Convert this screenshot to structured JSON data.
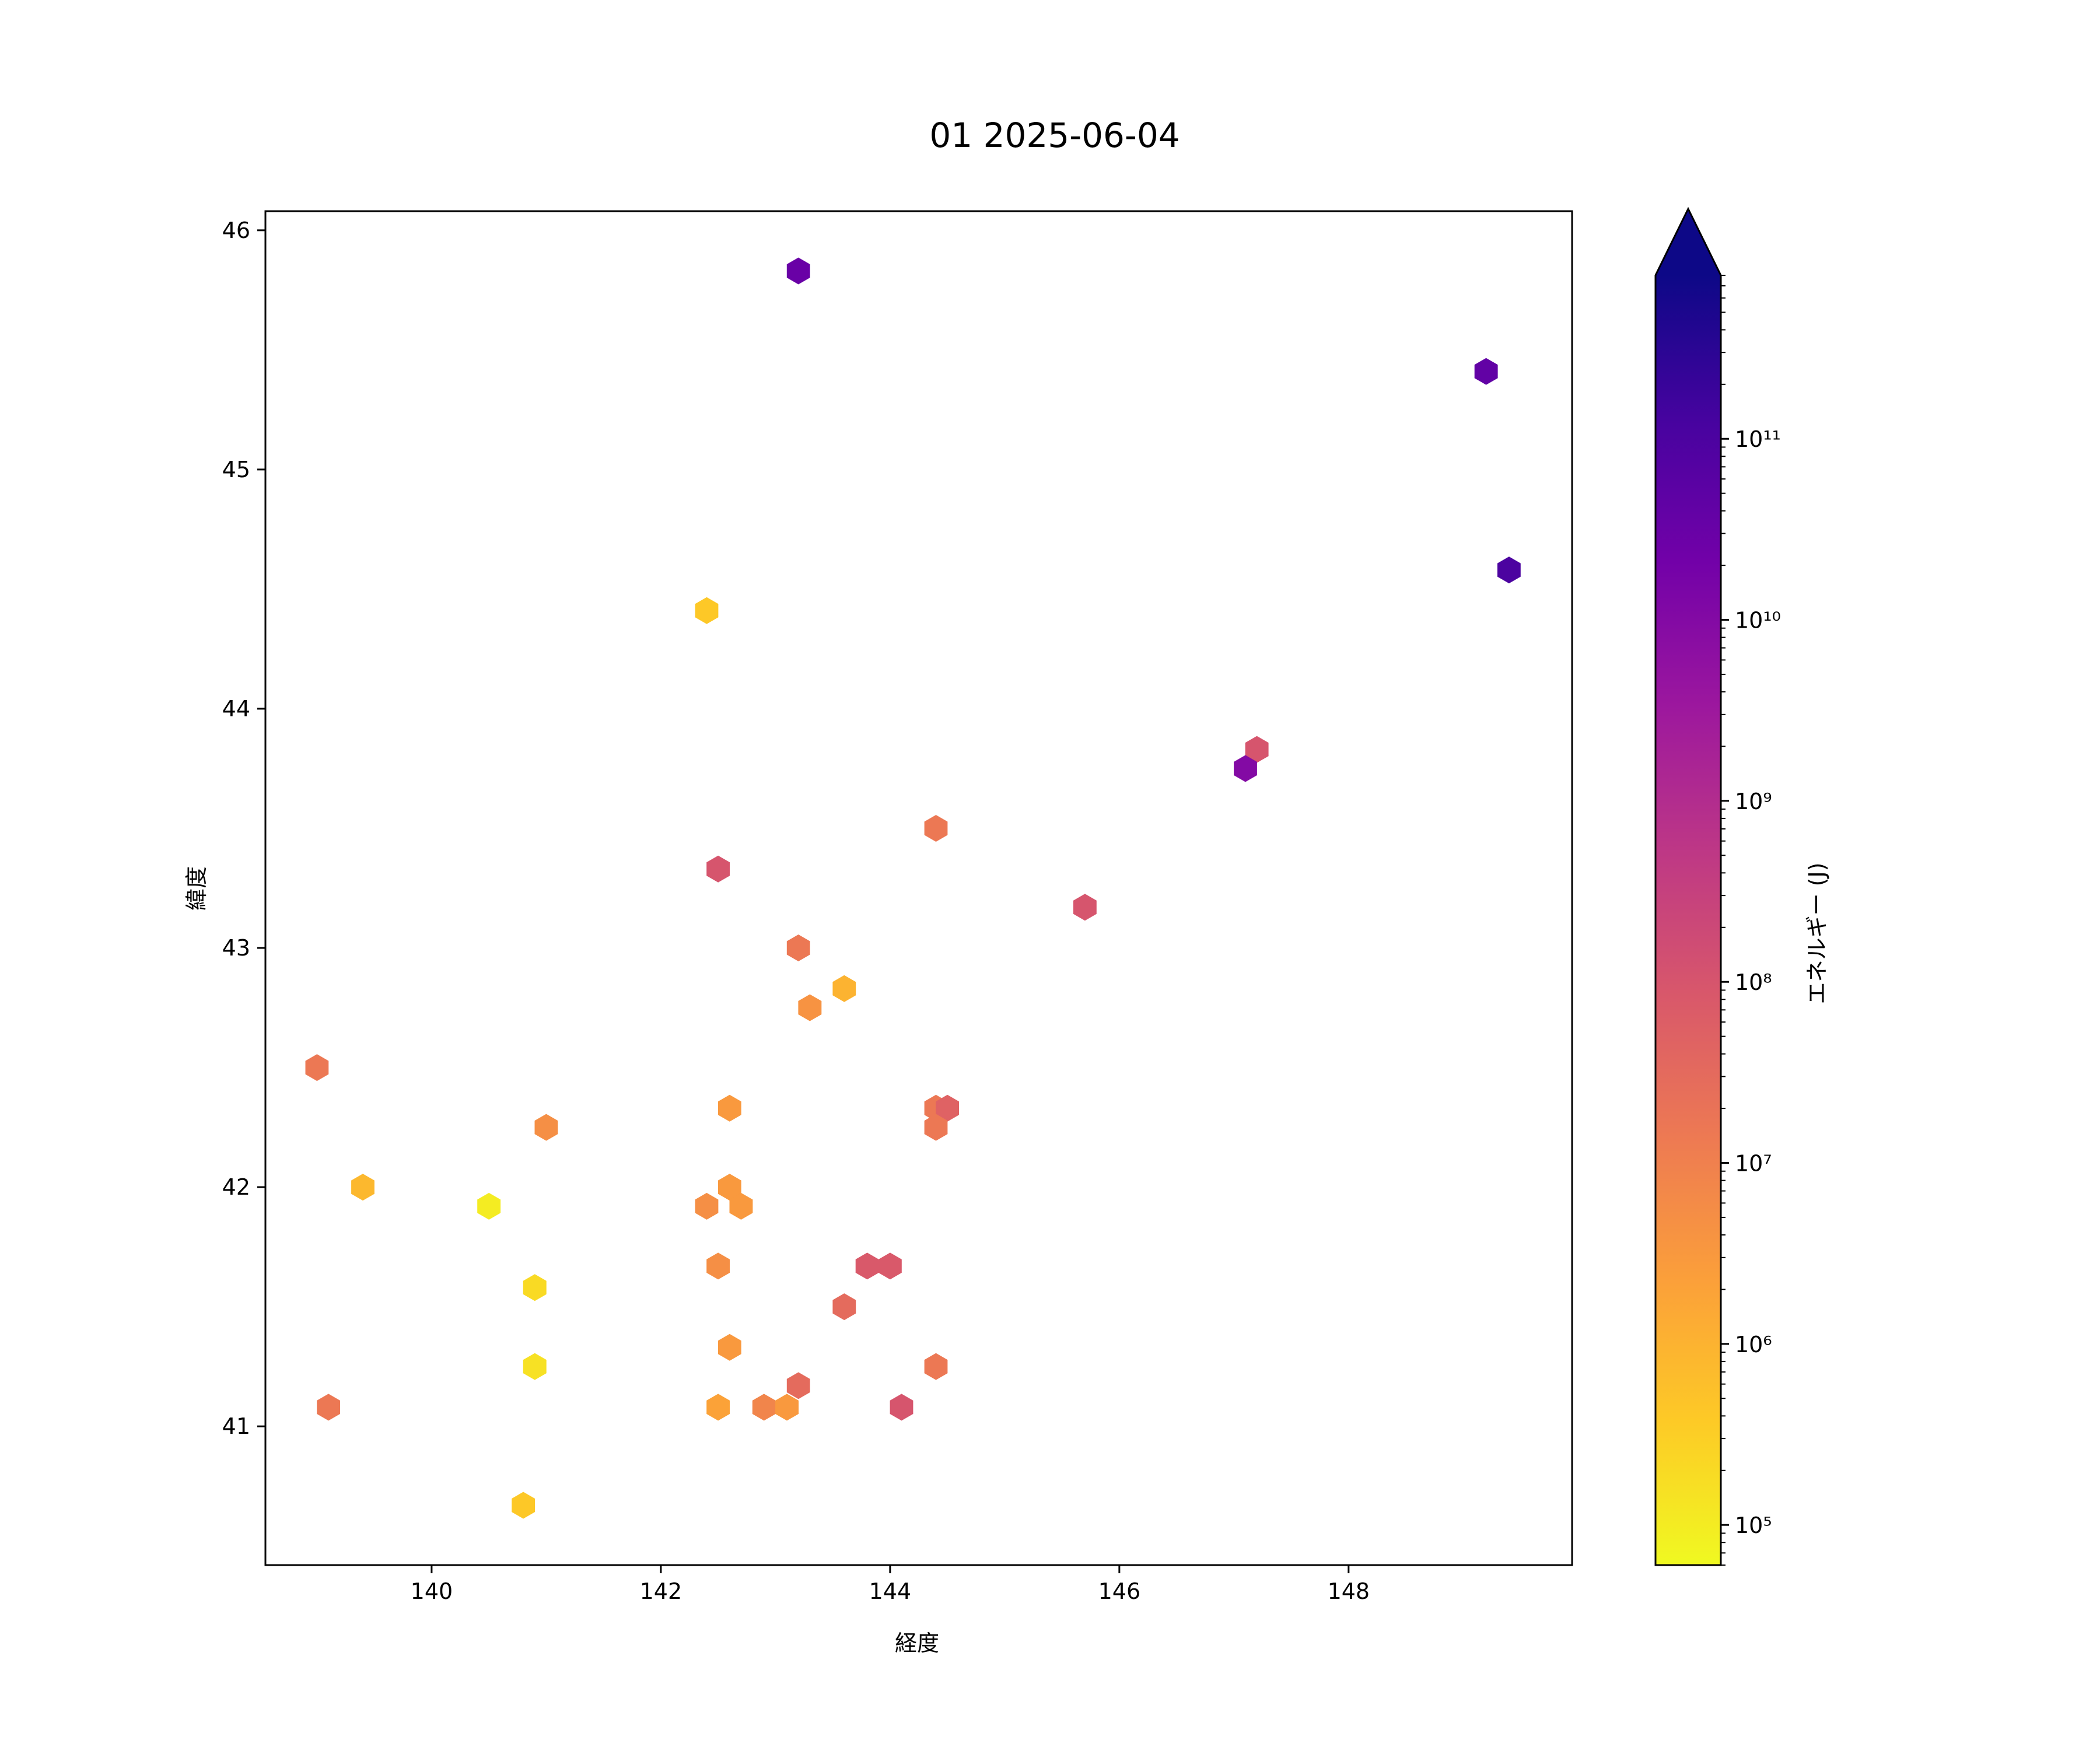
{
  "chart_data": {
    "type": "scatter",
    "marker": "hexagon",
    "title": "01 2025-06-04",
    "xlabel": "経度",
    "ylabel": "緯度",
    "xlim": [
      138.55,
      149.95
    ],
    "ylim": [
      40.42,
      46.08
    ],
    "xticks": [
      140,
      142,
      144,
      146,
      148
    ],
    "yticks": [
      41,
      42,
      43,
      44,
      45,
      46
    ],
    "grid": false,
    "colorbar": {
      "label": "エネルギー (J)",
      "scale": "log",
      "range": [
        60000,
        800000000000
      ],
      "extend": "max",
      "extend_color": "#0d0887",
      "colormap": "plasma_r",
      "tick_values": [
        100000,
        1000000,
        10000000,
        100000000,
        1000000000,
        10000000000,
        100000000000
      ],
      "tick_labels": [
        "10⁵",
        "10⁶",
        "10⁷",
        "10⁸",
        "10⁹",
        "10¹⁰",
        "10¹¹"
      ],
      "stops": [
        "#f0f921",
        "#fdca26",
        "#fb9f3a",
        "#ed7953",
        "#d8576b",
        "#bd3786",
        "#9c179e",
        "#7201a8",
        "#46039f",
        "#0d0887"
      ]
    },
    "points": [
      {
        "x": 143.2,
        "y": 45.83,
        "energy": 30000000000
      },
      {
        "x": 149.2,
        "y": 45.41,
        "energy": 40000000000
      },
      {
        "x": 149.4,
        "y": 44.58,
        "energy": 100000000000
      },
      {
        "x": 142.4,
        "y": 44.41,
        "energy": 400000
      },
      {
        "x": 147.2,
        "y": 43.83,
        "energy": 100000000
      },
      {
        "x": 147.1,
        "y": 43.75,
        "energy": 10000000000
      },
      {
        "x": 144.4,
        "y": 43.5,
        "energy": 15000000
      },
      {
        "x": 142.5,
        "y": 43.33,
        "energy": 100000000
      },
      {
        "x": 145.7,
        "y": 43.17,
        "energy": 100000000
      },
      {
        "x": 143.2,
        "y": 43.0,
        "energy": 15000000
      },
      {
        "x": 143.6,
        "y": 42.83,
        "energy": 1000000
      },
      {
        "x": 143.3,
        "y": 42.75,
        "energy": 4000000
      },
      {
        "x": 139.0,
        "y": 42.5,
        "energy": 15000000
      },
      {
        "x": 142.6,
        "y": 42.33,
        "energy": 3000000
      },
      {
        "x": 144.4,
        "y": 42.33,
        "energy": 15000000
      },
      {
        "x": 144.5,
        "y": 42.33,
        "energy": 50000000
      },
      {
        "x": 144.4,
        "y": 42.25,
        "energy": 15000000
      },
      {
        "x": 141.0,
        "y": 42.25,
        "energy": 5000000
      },
      {
        "x": 139.4,
        "y": 42.0,
        "energy": 800000
      },
      {
        "x": 142.6,
        "y": 42.0,
        "energy": 3000000
      },
      {
        "x": 142.4,
        "y": 41.92,
        "energy": 5000000
      },
      {
        "x": 142.7,
        "y": 41.92,
        "energy": 3000000
      },
      {
        "x": 140.5,
        "y": 41.92,
        "energy": 100000
      },
      {
        "x": 142.5,
        "y": 41.67,
        "energy": 5000000
      },
      {
        "x": 143.8,
        "y": 41.67,
        "energy": 80000000
      },
      {
        "x": 144.0,
        "y": 41.67,
        "energy": 80000000
      },
      {
        "x": 140.9,
        "y": 41.58,
        "energy": 200000
      },
      {
        "x": 143.6,
        "y": 41.5,
        "energy": 30000000
      },
      {
        "x": 142.6,
        "y": 41.33,
        "energy": 3000000
      },
      {
        "x": 140.9,
        "y": 41.25,
        "energy": 150000
      },
      {
        "x": 144.4,
        "y": 41.25,
        "energy": 15000000
      },
      {
        "x": 143.2,
        "y": 41.17,
        "energy": 30000000
      },
      {
        "x": 139.1,
        "y": 41.08,
        "energy": 15000000
      },
      {
        "x": 142.5,
        "y": 41.08,
        "energy": 2000000
      },
      {
        "x": 142.9,
        "y": 41.08,
        "energy": 8000000
      },
      {
        "x": 143.1,
        "y": 41.08,
        "energy": 3000000
      },
      {
        "x": 144.1,
        "y": 41.08,
        "energy": 100000000
      },
      {
        "x": 140.8,
        "y": 40.67,
        "energy": 400000
      }
    ]
  }
}
